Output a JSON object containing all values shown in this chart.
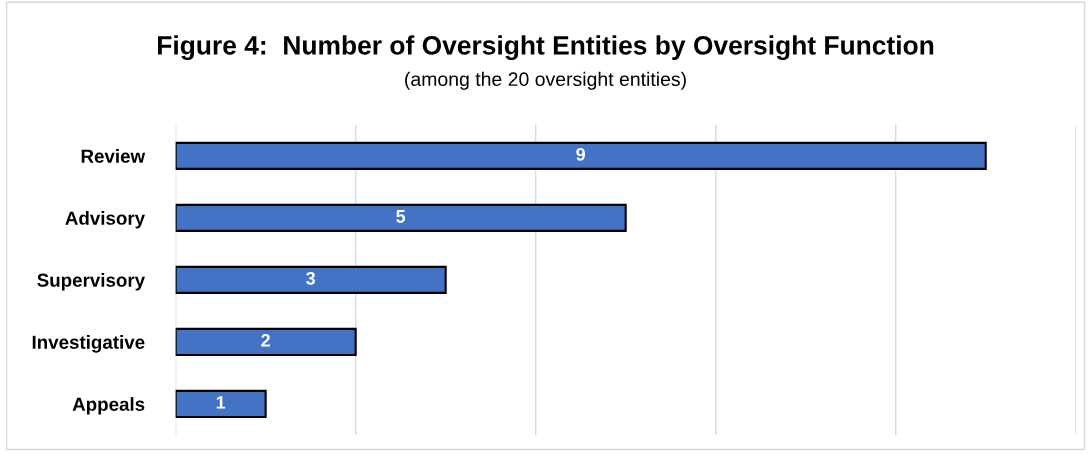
{
  "chart_data": {
    "type": "bar",
    "orientation": "horizontal",
    "title": "Figure 4:  Number of Oversight Entities by Oversight Function",
    "subtitle": "(among the 20 oversight entities)",
    "categories": [
      "Review",
      "Advisory",
      "Supervisory",
      "Investigative",
      "Appeals"
    ],
    "values": [
      9,
      5,
      3,
      2,
      1
    ],
    "color": "#4472c4",
    "data_labels": true,
    "xlim": [
      0,
      10
    ],
    "xticks": [
      {
        "value": 0,
        "label": null
      },
      {
        "value": 2,
        "label": null
      },
      {
        "value": 4,
        "label": null
      },
      {
        "value": 6,
        "label": null
      },
      {
        "value": 8,
        "label": null
      },
      {
        "value": 10,
        "label": null
      }
    ],
    "tick_labels": "y",
    "grid": "x",
    "legend": false
  }
}
